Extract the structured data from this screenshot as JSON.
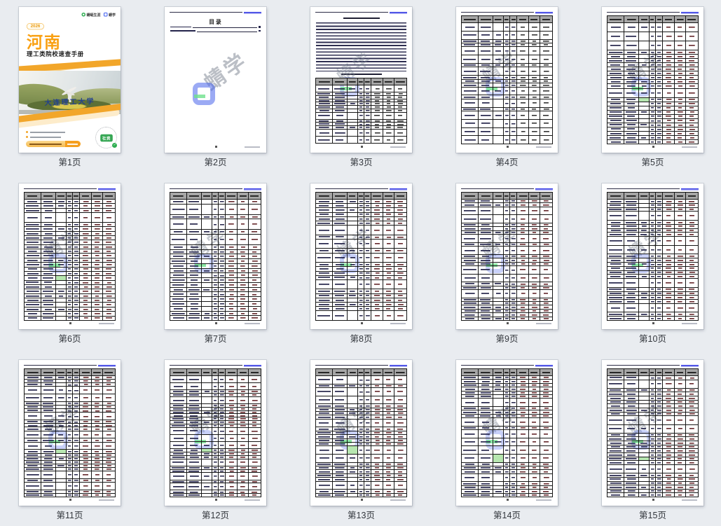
{
  "window": {
    "background": "#e9ecf0"
  },
  "page_labels": [
    "第1页",
    "第2页",
    "第3页",
    "第4页",
    "第5页",
    "第6页",
    "第7页",
    "第8页",
    "第9页",
    "第10页",
    "第11页",
    "第12页",
    "第13页",
    "第14页",
    "第15页"
  ],
  "cover": {
    "brand_left": "蜻蜓生涯",
    "brand_right": "蜻学",
    "year": "2026",
    "region": "河南",
    "subtitle": "理工类院校速查手册",
    "photo_watermark": "大连理工大学",
    "stamp_text": "社资",
    "colors": {
      "accent_orange": "#f2a62a",
      "region_orange": "#f9a012",
      "ribbon_light": "#f7d089",
      "stamp_green": "#35a653",
      "photo_watermark_blue": "#23418f"
    }
  },
  "toc": {
    "title": "目录",
    "entry_count": 2
  },
  "watermark_text": "蜻学",
  "table_colors": {
    "header_bg": "#a6a6a6",
    "border": "#161616",
    "text_bar": "#24244a",
    "value_dark": "#333333",
    "value_maroon": "#64262a",
    "green_highlight": "#b7e7b0",
    "link_blue": "#2d33e2"
  },
  "pages": [
    {
      "type": "cover"
    },
    {
      "type": "toc"
    },
    {
      "type": "intro",
      "rows": 13,
      "tall": 0.3,
      "seed": 31,
      "value_color": "dark"
    },
    {
      "type": "table",
      "rows": 19,
      "tall": 0.38,
      "seed": 41,
      "value_color": "dark"
    },
    {
      "type": "table",
      "rows": 24,
      "tall": 0.24,
      "seed": 52,
      "green_row": 0.54,
      "value_color": "maroon"
    },
    {
      "type": "table",
      "rows": 26,
      "tall": 0.22,
      "seed": 63,
      "green_row": 0.6,
      "value_color": "maroon"
    },
    {
      "type": "table",
      "rows": 22,
      "tall": 0.3,
      "seed": 74,
      "value_color": "maroon"
    },
    {
      "type": "table",
      "rows": 22,
      "tall": 0.28,
      "seed": 85,
      "value_color": "maroon"
    },
    {
      "type": "table",
      "rows": 24,
      "tall": 0.22,
      "seed": 96,
      "value_color": "maroon"
    },
    {
      "type": "table",
      "rows": 24,
      "tall": 0.25,
      "seed": 107,
      "value_color": "maroon"
    },
    {
      "type": "table",
      "rows": 26,
      "tall": 0.25,
      "seed": 118,
      "green_row": 0.59,
      "value_color": "maroon"
    },
    {
      "type": "table",
      "rows": 26,
      "tall": 0.22,
      "seed": 129,
      "green_row": 0.58,
      "value_color": "maroon"
    },
    {
      "type": "table",
      "rows": 24,
      "tall": 0.26,
      "seed": 140,
      "green_row": 0.6,
      "value_color": "maroon"
    },
    {
      "type": "table",
      "rows": 24,
      "tall": 0.25,
      "seed": 151,
      "green_row": 0.62,
      "value_color": "maroon"
    },
    {
      "type": "table",
      "rows": 26,
      "tall": 0.22,
      "seed": 162,
      "green_row": 0.65,
      "value_color": "maroon"
    }
  ]
}
